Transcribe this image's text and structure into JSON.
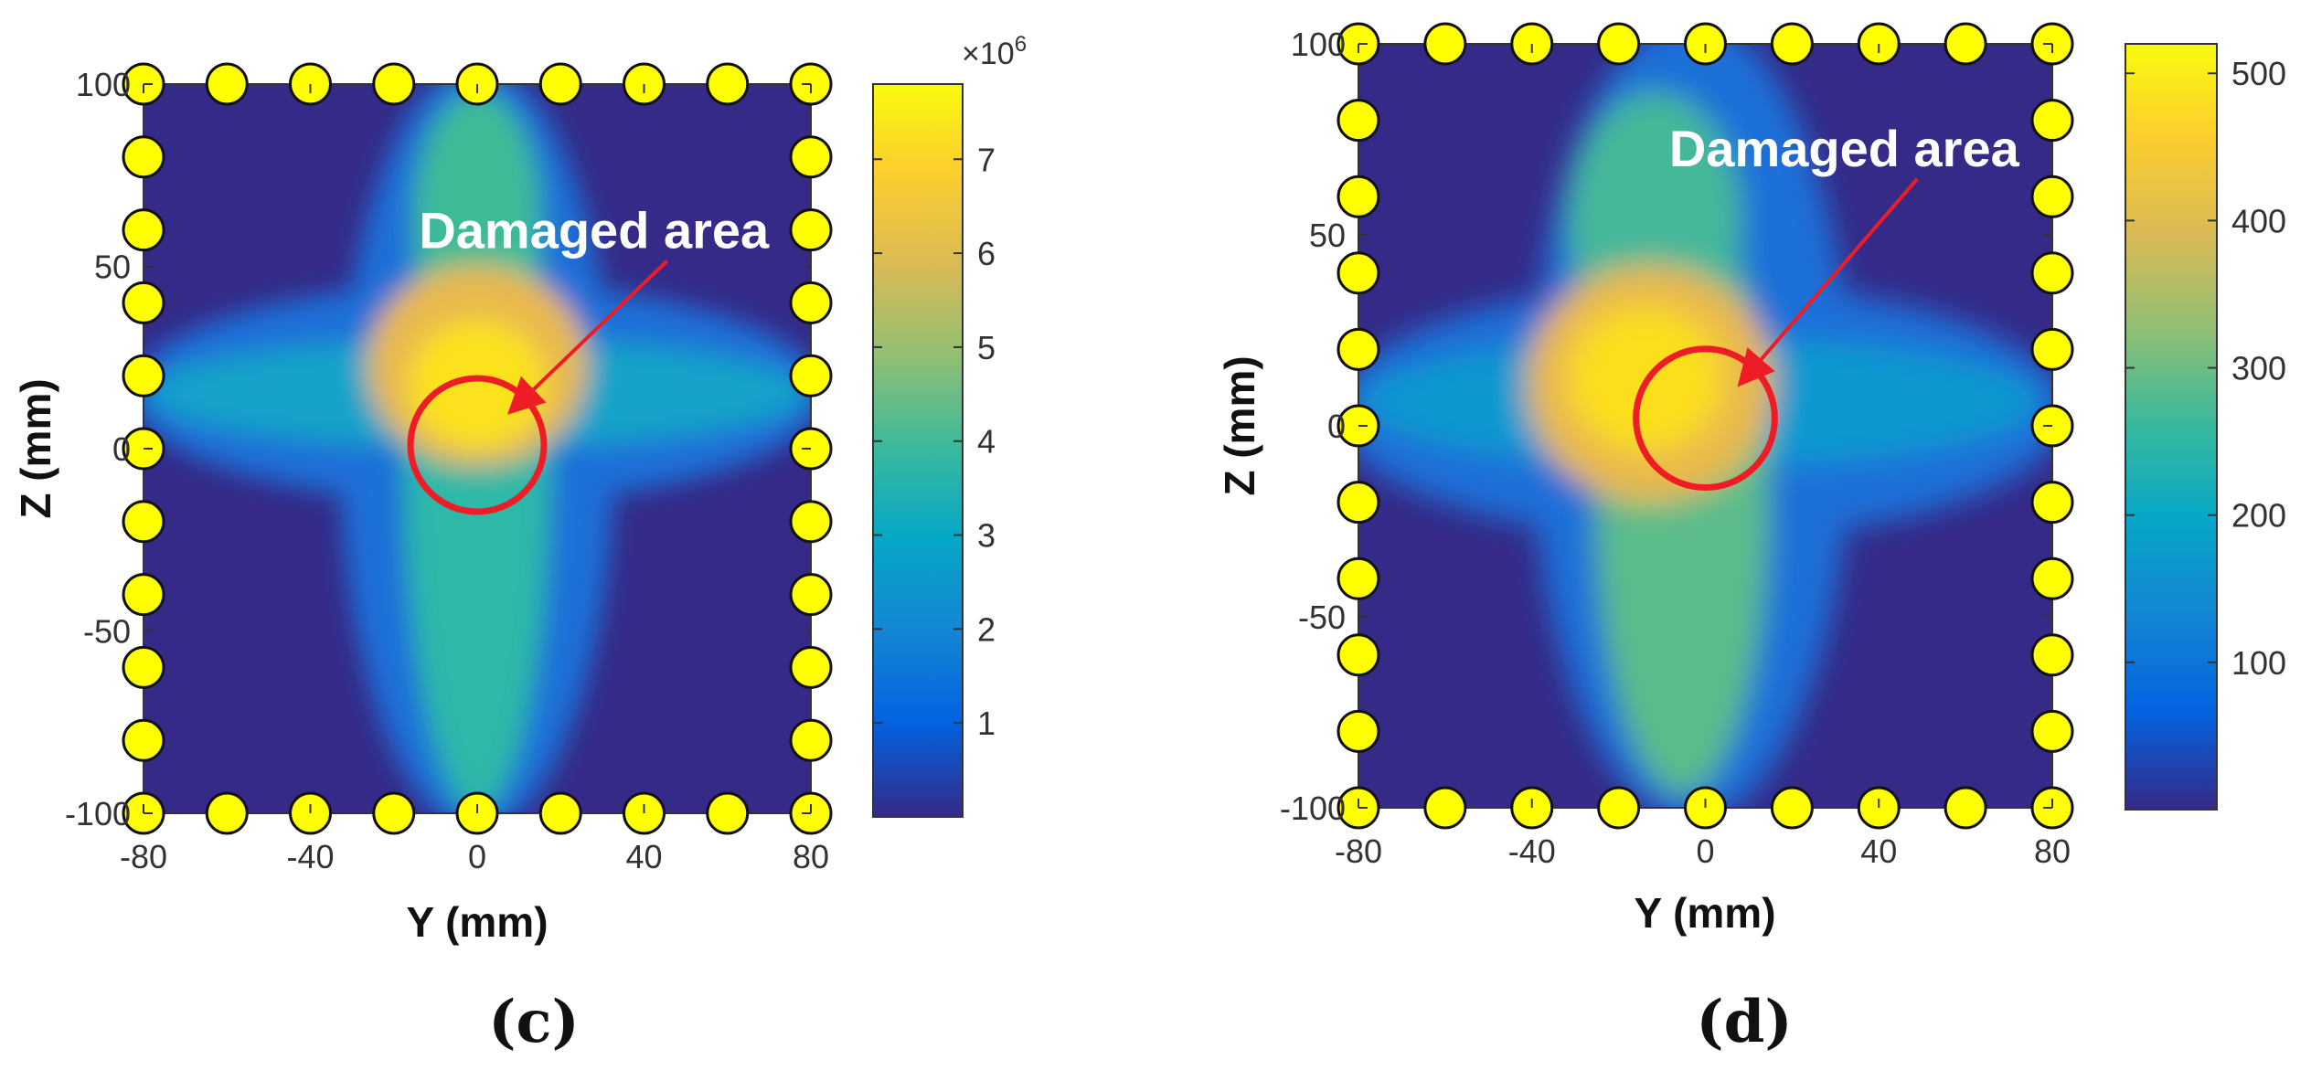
{
  "figure": {
    "panels": [
      "c",
      "d"
    ]
  },
  "chart_data": [
    {
      "type": "heatmap",
      "panel_label": "(c)",
      "title": "",
      "xlabel": "Y (mm)",
      "ylabel": "Z (mm)",
      "xlim": [
        -80,
        80
      ],
      "ylim": [
        -100,
        100
      ],
      "xticks": [
        -80,
        -40,
        0,
        40,
        80
      ],
      "yticks": [
        -100,
        -50,
        0,
        50,
        100
      ],
      "xtick_labels": [
        "-80",
        "-40",
        "0",
        "40",
        "80"
      ],
      "ytick_labels": [
        "-100",
        "-50",
        "0",
        "50",
        "100"
      ],
      "colormap": "parula",
      "colorbar": {
        "min": 0,
        "max": 7800000,
        "ticks": [
          1000000,
          2000000,
          3000000,
          4000000,
          5000000,
          6000000,
          7000000
        ],
        "tick_labels": [
          "1",
          "2",
          "3",
          "4",
          "5",
          "6",
          "7"
        ],
        "exponent_label": "×10",
        "exponent_power": "6"
      },
      "hotspot": {
        "y": 0,
        "z": 15
      },
      "damage_circle": {
        "center_y": 0,
        "center_z": 1,
        "radius": 16
      },
      "annotation": {
        "text": "Damaged area",
        "text_y": 28,
        "text_z": 55
      },
      "sensors": [
        {
          "y": -80,
          "z": 100
        },
        {
          "y": -60,
          "z": 100
        },
        {
          "y": -40,
          "z": 100
        },
        {
          "y": -20,
          "z": 100
        },
        {
          "y": 0,
          "z": 100
        },
        {
          "y": 20,
          "z": 100
        },
        {
          "y": 40,
          "z": 100
        },
        {
          "y": 60,
          "z": 100
        },
        {
          "y": 80,
          "z": 100
        },
        {
          "y": -80,
          "z": -100
        },
        {
          "y": -60,
          "z": -100
        },
        {
          "y": -40,
          "z": -100
        },
        {
          "y": -20,
          "z": -100
        },
        {
          "y": 0,
          "z": -100
        },
        {
          "y": 20,
          "z": -100
        },
        {
          "y": 40,
          "z": -100
        },
        {
          "y": 60,
          "z": -100
        },
        {
          "y": 80,
          "z": -100
        },
        {
          "y": -80,
          "z": 80
        },
        {
          "y": -80,
          "z": 60
        },
        {
          "y": -80,
          "z": 40
        },
        {
          "y": -80,
          "z": 20
        },
        {
          "y": -80,
          "z": 0
        },
        {
          "y": -80,
          "z": -20
        },
        {
          "y": -80,
          "z": -40
        },
        {
          "y": -80,
          "z": -60
        },
        {
          "y": -80,
          "z": -80
        },
        {
          "y": 80,
          "z": 80
        },
        {
          "y": 80,
          "z": 60
        },
        {
          "y": 80,
          "z": 40
        },
        {
          "y": 80,
          "z": 20
        },
        {
          "y": 80,
          "z": 0
        },
        {
          "y": 80,
          "z": -20
        },
        {
          "y": 80,
          "z": -40
        },
        {
          "y": 80,
          "z": -60
        },
        {
          "y": 80,
          "z": -80
        }
      ]
    },
    {
      "type": "heatmap",
      "panel_label": "(d)",
      "title": "",
      "xlabel": "Y (mm)",
      "ylabel": "Z (mm)",
      "xlim": [
        -80,
        80
      ],
      "ylim": [
        -100,
        100
      ],
      "xticks": [
        -80,
        -40,
        0,
        40,
        80
      ],
      "yticks": [
        -100,
        -50,
        0,
        50,
        100
      ],
      "xtick_labels": [
        "-80",
        "-40",
        "0",
        "40",
        "80"
      ],
      "ytick_labels": [
        "-100",
        "-50",
        "0",
        "50",
        "100"
      ],
      "colormap": "parula",
      "colorbar": {
        "min": 0,
        "max": 520,
        "ticks": [
          100,
          200,
          300,
          400,
          500
        ],
        "tick_labels": [
          "100",
          "200",
          "300",
          "400",
          "500"
        ]
      },
      "hotspot": {
        "y": -15,
        "z": 12
      },
      "damage_circle": {
        "center_y": 0,
        "center_z": 2,
        "radius": 16
      },
      "annotation": {
        "text": "Damaged area",
        "text_y": 32,
        "text_z": 68
      },
      "sensors": [
        {
          "y": -80,
          "z": 100
        },
        {
          "y": -60,
          "z": 100
        },
        {
          "y": -40,
          "z": 100
        },
        {
          "y": -20,
          "z": 100
        },
        {
          "y": 0,
          "z": 100
        },
        {
          "y": 20,
          "z": 100
        },
        {
          "y": 40,
          "z": 100
        },
        {
          "y": 60,
          "z": 100
        },
        {
          "y": 80,
          "z": 100
        },
        {
          "y": -80,
          "z": -100
        },
        {
          "y": -60,
          "z": -100
        },
        {
          "y": -40,
          "z": -100
        },
        {
          "y": -20,
          "z": -100
        },
        {
          "y": 0,
          "z": -100
        },
        {
          "y": 20,
          "z": -100
        },
        {
          "y": 40,
          "z": -100
        },
        {
          "y": 60,
          "z": -100
        },
        {
          "y": 80,
          "z": -100
        },
        {
          "y": -80,
          "z": 80
        },
        {
          "y": -80,
          "z": 60
        },
        {
          "y": -80,
          "z": 40
        },
        {
          "y": -80,
          "z": 20
        },
        {
          "y": -80,
          "z": 0
        },
        {
          "y": -80,
          "z": -20
        },
        {
          "y": -80,
          "z": -40
        },
        {
          "y": -80,
          "z": -60
        },
        {
          "y": -80,
          "z": -80
        },
        {
          "y": 80,
          "z": 80
        },
        {
          "y": 80,
          "z": 60
        },
        {
          "y": 80,
          "z": 40
        },
        {
          "y": 80,
          "z": 20
        },
        {
          "y": 80,
          "z": 0
        },
        {
          "y": 80,
          "z": -20
        },
        {
          "y": 80,
          "z": -40
        },
        {
          "y": 80,
          "z": -60
        },
        {
          "y": 80,
          "z": -80
        }
      ]
    }
  ]
}
